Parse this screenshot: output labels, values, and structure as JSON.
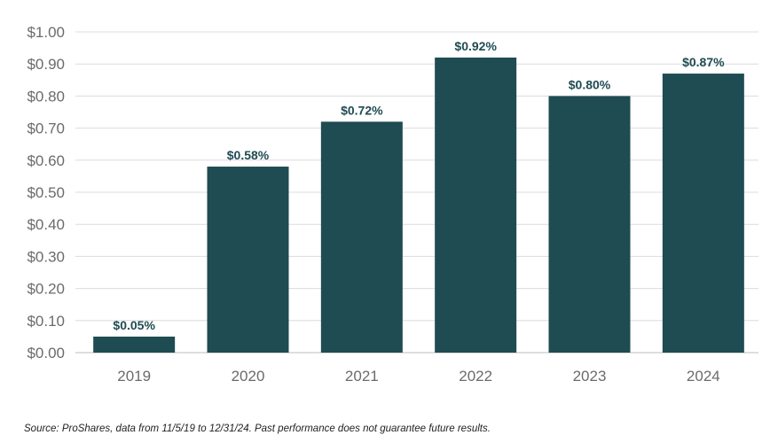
{
  "chart_data": {
    "type": "bar",
    "categories": [
      "2019",
      "2020",
      "2021",
      "2022",
      "2023",
      "2024"
    ],
    "values": [
      0.05,
      0.58,
      0.72,
      0.92,
      0.8,
      0.87
    ],
    "data_labels": [
      "$0.05%",
      "$0.58%",
      "$0.72%",
      "$0.92%",
      "$0.80%",
      "$0.87%"
    ],
    "y_ticks": [
      0.0,
      0.1,
      0.2,
      0.3,
      0.4,
      0.5,
      0.6,
      0.7,
      0.8,
      0.9,
      1.0
    ],
    "y_tick_labels": [
      "$0.00",
      "$0.10",
      "$0.20",
      "$0.30",
      "$0.40",
      "$0.50",
      "$0.60",
      "$0.70",
      "$0.80",
      "$0.90",
      "$1.00"
    ],
    "ylim": [
      0,
      1.0
    ],
    "grid": true,
    "bar_color": "#1f4b52",
    "title": "",
    "xlabel": "",
    "ylabel": ""
  },
  "footer": {
    "source": "Source: ProShares, data from 11/5/19 to 12/31/24. Past performance does not guarantee future results."
  }
}
